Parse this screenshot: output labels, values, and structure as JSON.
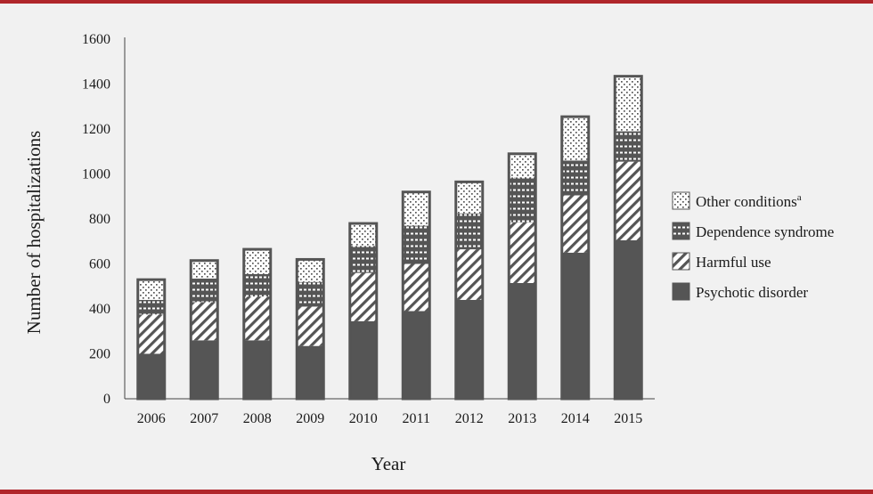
{
  "chart_data": {
    "type": "bar",
    "stacked": true,
    "xlabel": "Year",
    "ylabel": "Number of hospitalizations",
    "ylim": [
      0,
      1600
    ],
    "yticks": [
      0,
      200,
      400,
      600,
      800,
      1000,
      1200,
      1400,
      1600
    ],
    "categories": [
      "2006",
      "2007",
      "2008",
      "2009",
      "2010",
      "2011",
      "2012",
      "2013",
      "2014",
      "2015"
    ],
    "legend_position": "right",
    "series": [
      {
        "name": "Psychotic disorder",
        "pattern": "solid",
        "color": "#555555",
        "values": [
          200,
          260,
          260,
          235,
          345,
          390,
          440,
          515,
          650,
          705
        ]
      },
      {
        "name": "Harmful use",
        "pattern": "diagonal",
        "color": "#555555",
        "values": [
          175,
          170,
          195,
          175,
          215,
          210,
          225,
          270,
          255,
          350
        ]
      },
      {
        "name": "Dependence syndrome",
        "pattern": "dashes",
        "color": "#555555",
        "values": [
          65,
          105,
          100,
          110,
          120,
          170,
          160,
          200,
          155,
          135
        ]
      },
      {
        "name": "Other conditions",
        "name_superscript": "a",
        "pattern": "dots",
        "color": "#555555",
        "values": [
          90,
          80,
          110,
          100,
          100,
          150,
          140,
          105,
          195,
          245
        ]
      }
    ]
  }
}
